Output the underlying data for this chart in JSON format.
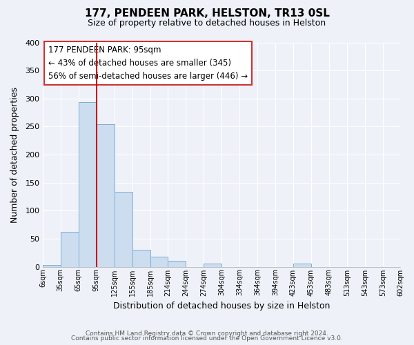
{
  "title": "177, PENDEEN PARK, HELSTON, TR13 0SL",
  "subtitle": "Size of property relative to detached houses in Helston",
  "xlabel": "Distribution of detached houses by size in Helston",
  "ylabel": "Number of detached properties",
  "bin_edges": [
    6,
    35,
    65,
    95,
    125,
    155,
    185,
    214,
    244,
    274,
    304,
    334,
    364,
    394,
    423,
    453,
    483,
    513,
    543,
    573,
    602
  ],
  "bin_labels": [
    "6sqm",
    "35sqm",
    "65sqm",
    "95sqm",
    "125sqm",
    "155sqm",
    "185sqm",
    "214sqm",
    "244sqm",
    "274sqm",
    "304sqm",
    "334sqm",
    "364sqm",
    "394sqm",
    "423sqm",
    "453sqm",
    "483sqm",
    "513sqm",
    "543sqm",
    "573sqm",
    "602sqm"
  ],
  "bar_heights": [
    3,
    62,
    293,
    254,
    133,
    30,
    18,
    11,
    0,
    5,
    0,
    0,
    0,
    0,
    5,
    0,
    0,
    0,
    0,
    0
  ],
  "bar_color": "#ccddf0",
  "bar_edge_color": "#7bafd4",
  "red_line_x": 95,
  "ylim": [
    0,
    400
  ],
  "yticks": [
    0,
    50,
    100,
    150,
    200,
    250,
    300,
    350,
    400
  ],
  "annotation_title": "177 PENDEEN PARK: 95sqm",
  "annotation_line1": "← 43% of detached houses are smaller (345)",
  "annotation_line2": "56% of semi-detached houses are larger (446) →",
  "footer_line1": "Contains HM Land Registry data © Crown copyright and database right 2024.",
  "footer_line2": "Contains public sector information licensed under the Open Government Licence v3.0.",
  "background_color": "#eef2f8",
  "grid_color": "#ffffff"
}
